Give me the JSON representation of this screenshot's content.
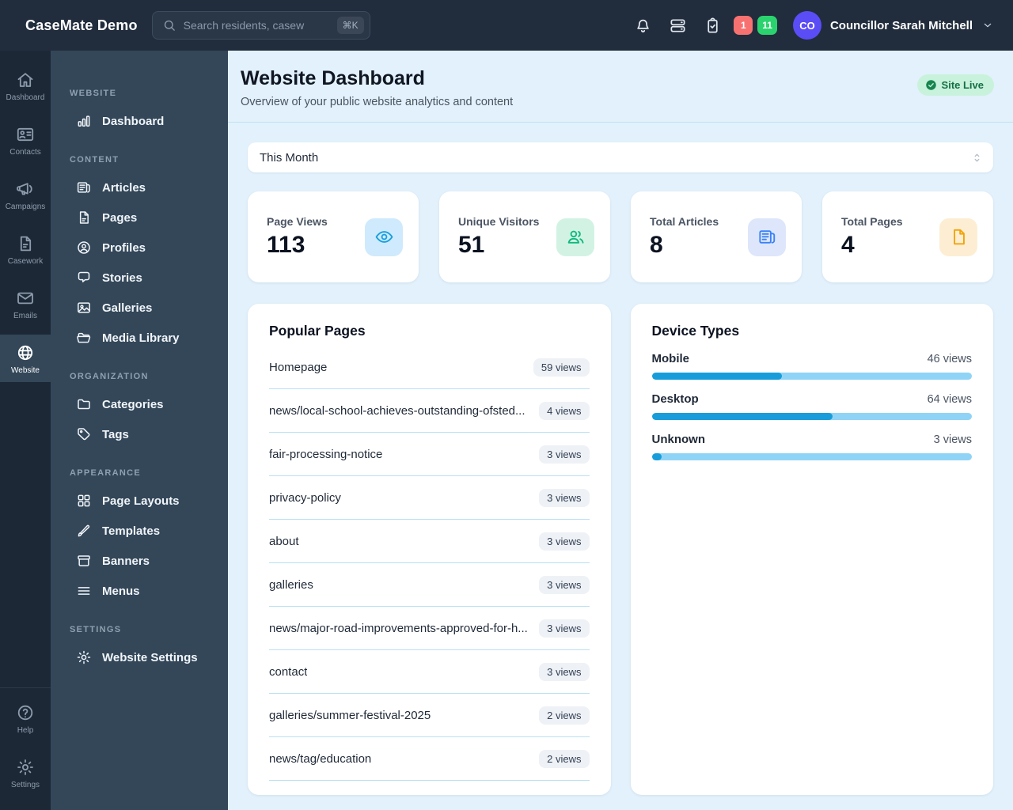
{
  "colors": {
    "header_bg": "#212d3d",
    "rail_bg": "#1d2836",
    "sidebar_bg": "#334759",
    "content_bg": "#e2f1fb",
    "divider": "#bfe2f4",
    "bar_fill": "#189dda",
    "bar_track": "#8fd4f6",
    "live_bg": "#c9f2dc",
    "live_text": "#156f45",
    "badge_red": "#f87171",
    "badge_green": "#2bd36e",
    "avatar_bg": "#5b4df5"
  },
  "header": {
    "logo": "CaseMate Demo",
    "search": {
      "placeholder": "Search residents, casew",
      "shortcut": "⌘K"
    },
    "badges": {
      "red": "1",
      "green": "11"
    },
    "user": {
      "initials": "CO",
      "name": "Councillor Sarah Mitchell"
    }
  },
  "rail": {
    "items": [
      {
        "label": "Dashboard",
        "icon": "home",
        "active": false
      },
      {
        "label": "Contacts",
        "icon": "id-card",
        "active": false
      },
      {
        "label": "Campaigns",
        "icon": "megaphone",
        "active": false
      },
      {
        "label": "Casework",
        "icon": "document",
        "active": false
      },
      {
        "label": "Emails",
        "icon": "envelope",
        "active": false
      },
      {
        "label": "Website",
        "icon": "globe",
        "active": true
      }
    ],
    "footer_items": [
      {
        "label": "Help",
        "icon": "question-circle",
        "active": false
      },
      {
        "label": "Settings",
        "icon": "gear",
        "active": false
      }
    ]
  },
  "sidebar": {
    "sections": [
      {
        "title": "WEBSITE",
        "items": [
          {
            "label": "Dashboard",
            "icon": "bar-chart"
          }
        ]
      },
      {
        "title": "CONTENT",
        "items": [
          {
            "label": "Articles",
            "icon": "newspaper"
          },
          {
            "label": "Pages",
            "icon": "pages"
          },
          {
            "label": "Profiles",
            "icon": "user-circle"
          },
          {
            "label": "Stories",
            "icon": "chat-bubble"
          },
          {
            "label": "Galleries",
            "icon": "photo"
          },
          {
            "label": "Media Library",
            "icon": "folder-open"
          }
        ]
      },
      {
        "title": "ORGANIZATION",
        "items": [
          {
            "label": "Categories",
            "icon": "folder"
          },
          {
            "label": "Tags",
            "icon": "tag"
          }
        ]
      },
      {
        "title": "APPEARANCE",
        "items": [
          {
            "label": "Page Layouts",
            "icon": "grid"
          },
          {
            "label": "Templates",
            "icon": "paintbrush"
          },
          {
            "label": "Banners",
            "icon": "archive-box"
          },
          {
            "label": "Menus",
            "icon": "menu-bars"
          }
        ]
      },
      {
        "title": "SETTINGS",
        "items": [
          {
            "label": "Website Settings",
            "icon": "gear"
          }
        ]
      }
    ]
  },
  "page": {
    "title": "Website Dashboard",
    "subtitle": "Overview of your public website analytics and content",
    "status_badge": "Site Live",
    "filter_value": "This Month",
    "stats": [
      {
        "label": "Page Views",
        "value": "113",
        "icon": "eye",
        "icon_color": "#18a0dc",
        "chip_bg": "#cfeafc"
      },
      {
        "label": "Unique Visitors",
        "value": "51",
        "icon": "users",
        "icon_color": "#10b981",
        "chip_bg": "#d2f3e3"
      },
      {
        "label": "Total Articles",
        "value": "8",
        "icon": "newspaper",
        "icon_color": "#3b82f6",
        "chip_bg": "#dde6fb"
      },
      {
        "label": "Total Pages",
        "value": "4",
        "icon": "page",
        "icon_color": "#f0a30a",
        "chip_bg": "#fdeed3"
      }
    ],
    "popular_pages": {
      "title": "Popular Pages",
      "rows": [
        {
          "name": "Homepage",
          "views": 59,
          "views_label": "59 views"
        },
        {
          "name": "news/local-school-achieves-outstanding-ofsted...",
          "views": 4,
          "views_label": "4 views"
        },
        {
          "name": "fair-processing-notice",
          "views": 3,
          "views_label": "3 views"
        },
        {
          "name": "privacy-policy",
          "views": 3,
          "views_label": "3 views"
        },
        {
          "name": "about",
          "views": 3,
          "views_label": "3 views"
        },
        {
          "name": "galleries",
          "views": 3,
          "views_label": "3 views"
        },
        {
          "name": "news/major-road-improvements-approved-for-h...",
          "views": 3,
          "views_label": "3 views"
        },
        {
          "name": "contact",
          "views": 3,
          "views_label": "3 views"
        },
        {
          "name": "galleries/summer-festival-2025",
          "views": 2,
          "views_label": "2 views"
        },
        {
          "name": "news/tag/education",
          "views": 2,
          "views_label": "2 views"
        }
      ]
    },
    "device_types": {
      "title": "Device Types",
      "total_page_views": 113,
      "rows": [
        {
          "label": "Mobile",
          "value": 46,
          "views_label": "46 views",
          "pct": 40.7
        },
        {
          "label": "Desktop",
          "value": 64,
          "views_label": "64 views",
          "pct": 56.6
        },
        {
          "label": "Unknown",
          "value": 3,
          "views_label": "3 views",
          "pct": 2.7
        }
      ]
    }
  }
}
